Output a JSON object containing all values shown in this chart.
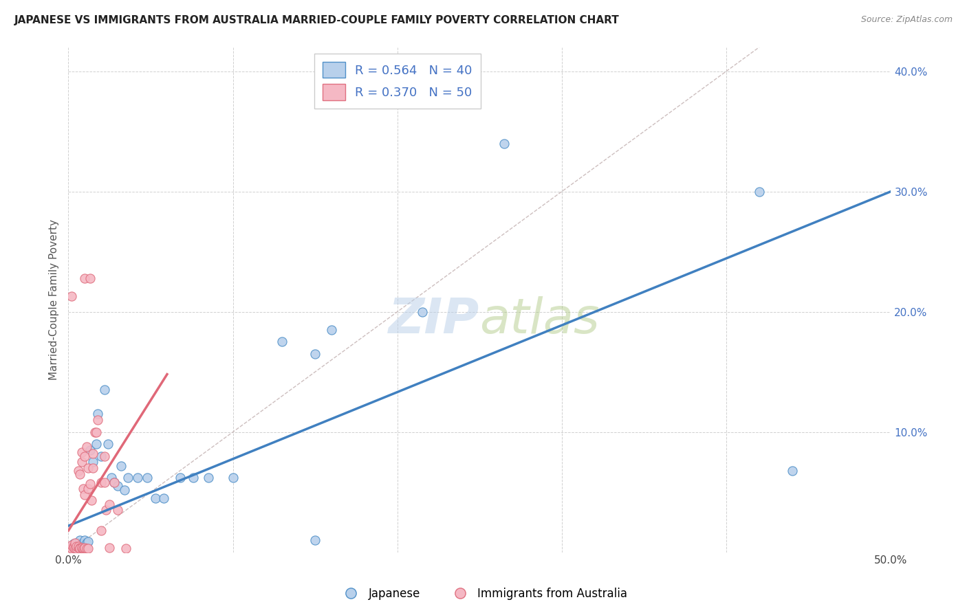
{
  "title": "JAPANESE VS IMMIGRANTS FROM AUSTRALIA MARRIED-COUPLE FAMILY POVERTY CORRELATION CHART",
  "source": "Source: ZipAtlas.com",
  "ylabel": "Married-Couple Family Poverty",
  "xlim": [
    0,
    0.5
  ],
  "ylim": [
    0,
    0.42
  ],
  "xticks": [
    0.0,
    0.1,
    0.2,
    0.3,
    0.4,
    0.5
  ],
  "yticks": [
    0.0,
    0.1,
    0.2,
    0.3,
    0.4
  ],
  "right_yticklabels": [
    "",
    "10.0%",
    "20.0%",
    "30.0%",
    "40.0%"
  ],
  "r_blue": 0.564,
  "n_blue": 40,
  "r_pink": 0.37,
  "n_pink": 50,
  "blue_fill": "#b8d0eb",
  "pink_fill": "#f5b8c4",
  "blue_edge": "#5090c8",
  "pink_edge": "#e07080",
  "blue_line_color": "#4080c0",
  "pink_line_color": "#e06878",
  "diag_color": "#c8b8b8",
  "watermark_zip": "ZIP",
  "watermark_atlas": "atlas",
  "blue_points": [
    [
      0.002,
      0.005
    ],
    [
      0.003,
      0.007
    ],
    [
      0.004,
      0.004
    ],
    [
      0.005,
      0.008
    ],
    [
      0.006,
      0.005
    ],
    [
      0.007,
      0.01
    ],
    [
      0.008,
      0.007
    ],
    [
      0.009,
      0.005
    ],
    [
      0.01,
      0.01
    ],
    [
      0.011,
      0.008
    ],
    [
      0.012,
      0.009
    ],
    [
      0.013,
      0.085
    ],
    [
      0.015,
      0.075
    ],
    [
      0.017,
      0.09
    ],
    [
      0.018,
      0.115
    ],
    [
      0.02,
      0.08
    ],
    [
      0.022,
      0.135
    ],
    [
      0.024,
      0.09
    ],
    [
      0.026,
      0.062
    ],
    [
      0.028,
      0.058
    ],
    [
      0.03,
      0.055
    ],
    [
      0.032,
      0.072
    ],
    [
      0.034,
      0.052
    ],
    [
      0.036,
      0.062
    ],
    [
      0.042,
      0.062
    ],
    [
      0.048,
      0.062
    ],
    [
      0.053,
      0.045
    ],
    [
      0.058,
      0.045
    ],
    [
      0.068,
      0.062
    ],
    [
      0.076,
      0.062
    ],
    [
      0.085,
      0.062
    ],
    [
      0.1,
      0.062
    ],
    [
      0.13,
      0.175
    ],
    [
      0.15,
      0.165
    ],
    [
      0.16,
      0.185
    ],
    [
      0.215,
      0.2
    ],
    [
      0.265,
      0.34
    ],
    [
      0.15,
      0.01
    ],
    [
      0.44,
      0.068
    ],
    [
      0.42,
      0.3
    ]
  ],
  "pink_points": [
    [
      0.001,
      0.004
    ],
    [
      0.002,
      0.003
    ],
    [
      0.002,
      0.006
    ],
    [
      0.003,
      0.005
    ],
    [
      0.003,
      0.004
    ],
    [
      0.004,
      0.003
    ],
    [
      0.004,
      0.008
    ],
    [
      0.005,
      0.003
    ],
    [
      0.005,
      0.005
    ],
    [
      0.006,
      0.004
    ],
    [
      0.006,
      0.005
    ],
    [
      0.007,
      0.004
    ],
    [
      0.007,
      0.003
    ],
    [
      0.008,
      0.003
    ],
    [
      0.008,
      0.004
    ],
    [
      0.009,
      0.003
    ],
    [
      0.01,
      0.003
    ],
    [
      0.01,
      0.004
    ],
    [
      0.011,
      0.003
    ],
    [
      0.012,
      0.003
    ],
    [
      0.006,
      0.068
    ],
    [
      0.007,
      0.065
    ],
    [
      0.008,
      0.075
    ],
    [
      0.008,
      0.083
    ],
    [
      0.009,
      0.053
    ],
    [
      0.01,
      0.08
    ],
    [
      0.01,
      0.048
    ],
    [
      0.011,
      0.088
    ],
    [
      0.012,
      0.053
    ],
    [
      0.012,
      0.07
    ],
    [
      0.013,
      0.057
    ],
    [
      0.014,
      0.043
    ],
    [
      0.015,
      0.082
    ],
    [
      0.015,
      0.07
    ],
    [
      0.016,
      0.1
    ],
    [
      0.017,
      0.1
    ],
    [
      0.018,
      0.11
    ],
    [
      0.002,
      0.213
    ],
    [
      0.01,
      0.228
    ],
    [
      0.013,
      0.228
    ],
    [
      0.02,
      0.058
    ],
    [
      0.02,
      0.018
    ],
    [
      0.022,
      0.08
    ],
    [
      0.022,
      0.058
    ],
    [
      0.023,
      0.035
    ],
    [
      0.025,
      0.004
    ],
    [
      0.025,
      0.04
    ],
    [
      0.028,
      0.058
    ],
    [
      0.03,
      0.035
    ],
    [
      0.035,
      0.003
    ]
  ],
  "blue_line_x": [
    0.0,
    0.5
  ],
  "blue_line_y": [
    0.022,
    0.3
  ],
  "pink_line_x": [
    0.0,
    0.06
  ],
  "pink_line_y": [
    0.018,
    0.148
  ],
  "diag_line_x": [
    0.0,
    0.42
  ],
  "diag_line_y": [
    0.0,
    0.42
  ]
}
